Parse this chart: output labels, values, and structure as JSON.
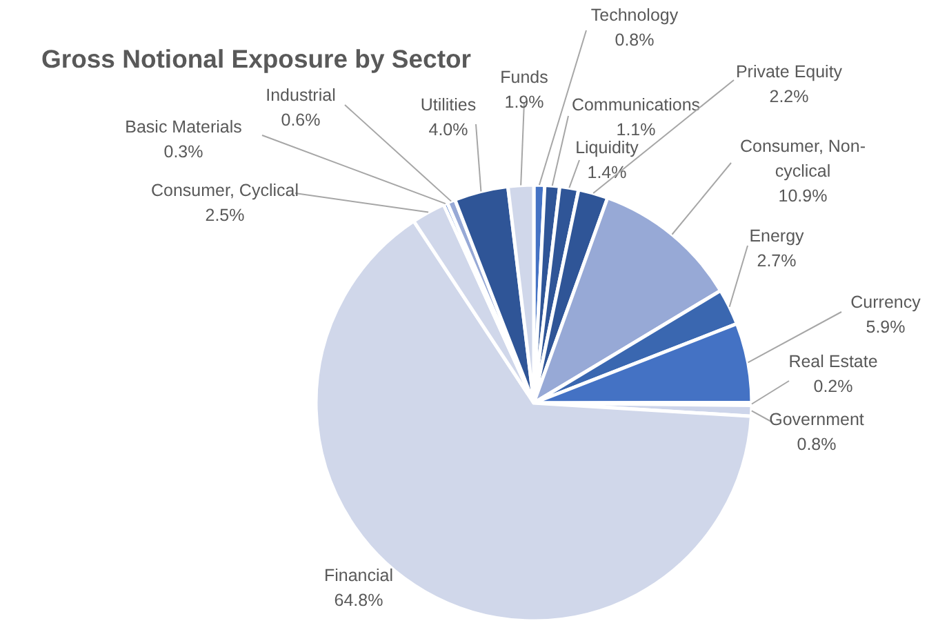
{
  "chart_data": {
    "type": "pie",
    "title": "Gross Notional Exposure by Sector",
    "categories": [
      "Technology",
      "Communications",
      "Liquidity",
      "Private Equity",
      "Consumer, Non-cyclical",
      "Energy",
      "Currency",
      "Real Estate",
      "Government",
      "Financial",
      "Consumer, Cyclical",
      "Basic Materials",
      "Industrial",
      "Utilities",
      "Funds"
    ],
    "values": [
      0.8,
      1.1,
      1.4,
      2.2,
      10.9,
      2.7,
      5.9,
      0.2,
      0.8,
      64.8,
      2.5,
      0.3,
      0.6,
      4.0,
      1.9
    ],
    "colors": [
      "#4472c4",
      "#2f5597",
      "#2f5597",
      "#2f5597",
      "#97a9d6",
      "#3a67b0",
      "#4472c4",
      "#4472c4",
      "#cdd5ea",
      "#d0d7ea",
      "#d0d7ea",
      "#4472c4",
      "#97a9d6",
      "#2f5597",
      "#d0d7ea"
    ],
    "value_labels": [
      "0.8%",
      "1.1%",
      "1.4%",
      "2.2%",
      "10.9%",
      "2.7%",
      "5.9%",
      "0.2%",
      "0.8%",
      "64.8%",
      "2.5%",
      "0.3%",
      "0.6%",
      "4.0%",
      "1.9%"
    ]
  }
}
